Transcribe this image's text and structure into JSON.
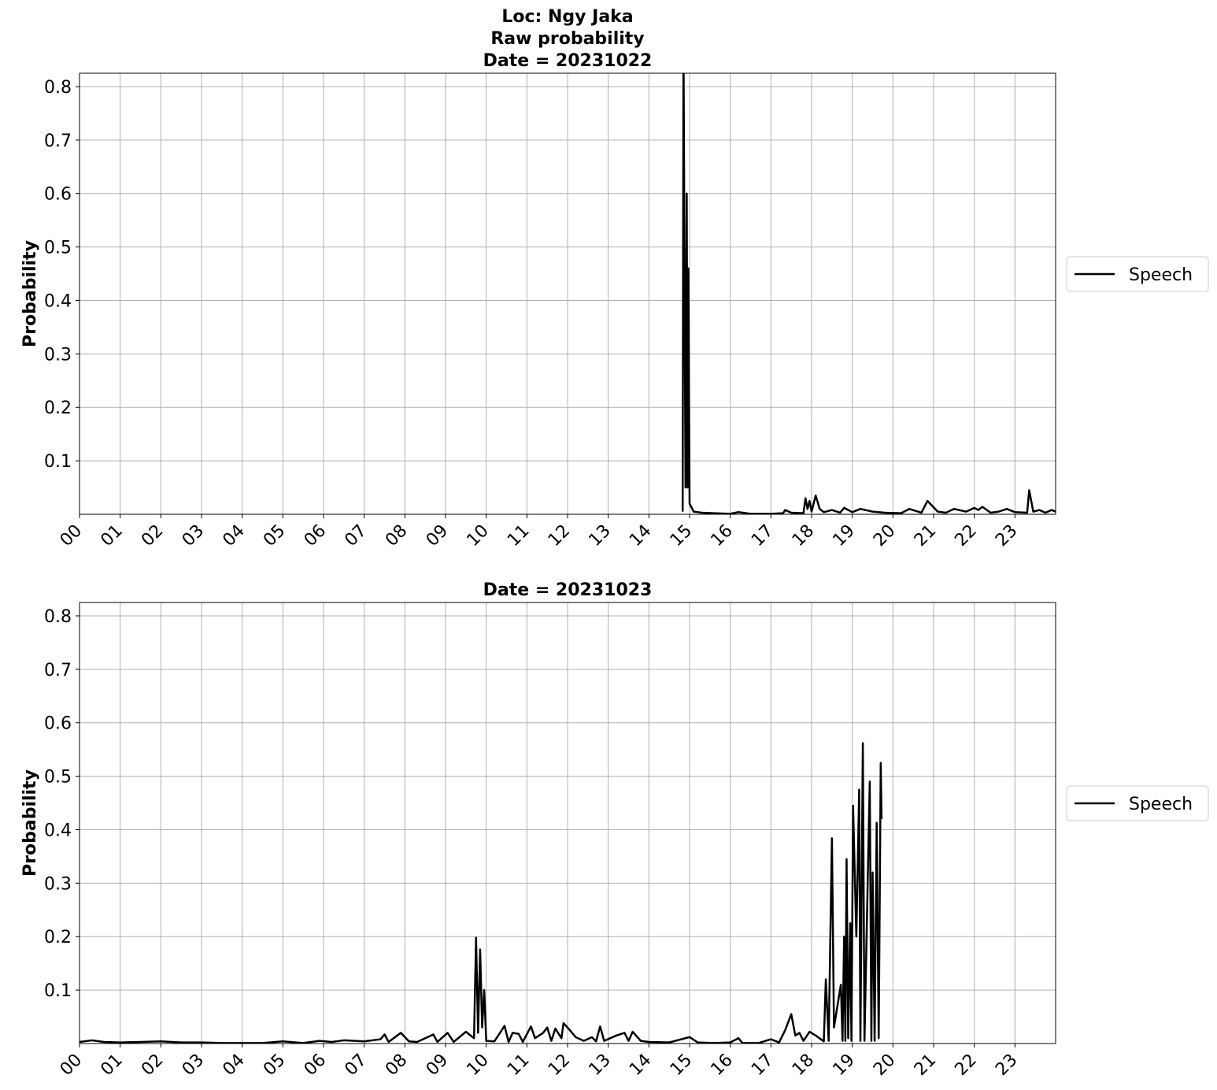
{
  "chart_data": [
    {
      "type": "line",
      "title": [
        "Loc: Ngy Jaka",
        "Raw probability",
        "Date = 20231022"
      ],
      "ylabel": "Probability",
      "x": [
        14.83,
        14.85,
        14.88,
        14.9,
        14.93,
        14.95,
        14.97,
        15.0,
        15.1,
        15.3,
        15.6,
        16.0,
        16.2,
        16.5,
        17.0,
        17.3,
        17.35,
        17.5,
        17.8,
        17.85,
        17.9,
        17.95,
        18.0,
        18.1,
        18.2,
        18.3,
        18.5,
        18.7,
        18.8,
        19.0,
        19.2,
        19.5,
        19.8,
        20.2,
        20.4,
        20.7,
        20.85,
        21.1,
        21.3,
        21.5,
        21.8,
        22.0,
        22.1,
        22.2,
        22.4,
        22.6,
        22.8,
        23.0,
        23.3,
        23.35,
        23.45,
        23.6,
        23.75,
        23.9,
        24.0
      ],
      "series": [
        {
          "name": "Speech",
          "color": "#000000",
          "values": [
            0.005,
            0.9,
            0.37,
            0.05,
            0.6,
            0.05,
            0.46,
            0.02,
            0.005,
            0.003,
            0.002,
            0.001,
            0.004,
            0.001,
            0.001,
            0.002,
            0.008,
            0.003,
            0.002,
            0.03,
            0.01,
            0.025,
            0.005,
            0.035,
            0.01,
            0.004,
            0.008,
            0.003,
            0.012,
            0.004,
            0.01,
            0.005,
            0.003,
            0.002,
            0.01,
            0.003,
            0.025,
            0.005,
            0.003,
            0.01,
            0.005,
            0.012,
            0.008,
            0.014,
            0.003,
            0.005,
            0.01,
            0.004,
            0.003,
            0.045,
            0.005,
            0.008,
            0.003,
            0.008,
            0.005
          ]
        }
      ],
      "xlim": [
        0,
        24
      ],
      "ylim": [
        0,
        0.825
      ],
      "xticks": [
        {
          "value": 0,
          "label": "00"
        },
        {
          "value": 1,
          "label": "01"
        },
        {
          "value": 2,
          "label": "02"
        },
        {
          "value": 3,
          "label": "03"
        },
        {
          "value": 4,
          "label": "04"
        },
        {
          "value": 5,
          "label": "05"
        },
        {
          "value": 6,
          "label": "06"
        },
        {
          "value": 7,
          "label": "07"
        },
        {
          "value": 8,
          "label": "08"
        },
        {
          "value": 9,
          "label": "09"
        },
        {
          "value": 10,
          "label": "10"
        },
        {
          "value": 11,
          "label": "11"
        },
        {
          "value": 12,
          "label": "12"
        },
        {
          "value": 13,
          "label": "13"
        },
        {
          "value": 14,
          "label": "14"
        },
        {
          "value": 15,
          "label": "15"
        },
        {
          "value": 16,
          "label": "16"
        },
        {
          "value": 17,
          "label": "17"
        },
        {
          "value": 18,
          "label": "18"
        },
        {
          "value": 19,
          "label": "19"
        },
        {
          "value": 20,
          "label": "20"
        },
        {
          "value": 21,
          "label": "21"
        },
        {
          "value": 22,
          "label": "22"
        },
        {
          "value": 23,
          "label": "23"
        }
      ],
      "yticks": [
        0.1,
        0.2,
        0.3,
        0.4,
        0.5,
        0.6,
        0.7,
        0.8
      ],
      "grid": true,
      "legend_loc": "right"
    },
    {
      "type": "line",
      "title": [
        "Date = 20231023"
      ],
      "ylabel": "Probability",
      "x": [
        0,
        0.3,
        0.6,
        1.0,
        1.5,
        2.0,
        2.5,
        3.0,
        3.5,
        4.0,
        4.5,
        5.0,
        5.5,
        5.9,
        6.2,
        6.5,
        7.0,
        7.4,
        7.5,
        7.6,
        7.9,
        8.1,
        8.3,
        8.7,
        8.8,
        9.05,
        9.2,
        9.5,
        9.7,
        9.75,
        9.8,
        9.85,
        9.9,
        9.95,
        10.0,
        10.2,
        10.45,
        10.55,
        10.65,
        10.8,
        10.9,
        11.1,
        11.2,
        11.4,
        11.5,
        11.6,
        11.7,
        11.85,
        11.9,
        12.0,
        12.2,
        12.4,
        12.6,
        12.7,
        12.8,
        12.9,
        13.2,
        13.4,
        13.5,
        13.6,
        13.8,
        14.0,
        14.5,
        15.0,
        15.2,
        15.6,
        16.0,
        16.2,
        16.3,
        16.7,
        17.0,
        17.2,
        17.35,
        17.5,
        17.6,
        17.7,
        17.8,
        17.95,
        18.1,
        18.3,
        18.35,
        18.42,
        18.5,
        18.55,
        18.72,
        18.76,
        18.8,
        18.83,
        18.86,
        18.9,
        18.95,
        18.98,
        19.02,
        19.1,
        19.17,
        19.2,
        19.26,
        19.3,
        19.43,
        19.47,
        19.5,
        19.55,
        19.6,
        19.65,
        19.7,
        19.72
      ],
      "series": [
        {
          "name": "Speech",
          "color": "#000000",
          "values": [
            0.003,
            0.006,
            0.003,
            0.002,
            0.003,
            0.004,
            0.002,
            0.002,
            0.001,
            0.001,
            0.001,
            0.004,
            0.001,
            0.005,
            0.003,
            0.006,
            0.004,
            0.008,
            0.017,
            0.003,
            0.02,
            0.004,
            0.003,
            0.017,
            0.003,
            0.02,
            0.003,
            0.022,
            0.01,
            0.198,
            0.02,
            0.176,
            0.03,
            0.1,
            0.005,
            0.004,
            0.033,
            0.003,
            0.02,
            0.018,
            0.003,
            0.032,
            0.01,
            0.02,
            0.03,
            0.005,
            0.028,
            0.01,
            0.038,
            0.03,
            0.012,
            0.005,
            0.012,
            0.004,
            0.032,
            0.005,
            0.015,
            0.02,
            0.005,
            0.022,
            0.005,
            0.003,
            0.002,
            0.012,
            0.002,
            0.001,
            0.002,
            0.01,
            0.001,
            0.001,
            0.008,
            0.002,
            0.025,
            0.055,
            0.015,
            0.02,
            0.005,
            0.022,
            0.015,
            0.004,
            0.12,
            0.005,
            0.384,
            0.03,
            0.11,
            0.005,
            0.2,
            0.005,
            0.345,
            0.01,
            0.225,
            0.005,
            0.445,
            0.2,
            0.475,
            0.005,
            0.562,
            0.005,
            0.49,
            0.005,
            0.32,
            0.005,
            0.413,
            0.01,
            0.525,
            0.42
          ]
        }
      ],
      "xlim": [
        0,
        24
      ],
      "ylim": [
        0,
        0.825
      ],
      "xticks": [
        {
          "value": 0,
          "label": "00"
        },
        {
          "value": 1,
          "label": "01"
        },
        {
          "value": 2,
          "label": "02"
        },
        {
          "value": 3,
          "label": "03"
        },
        {
          "value": 4,
          "label": "04"
        },
        {
          "value": 5,
          "label": "05"
        },
        {
          "value": 6,
          "label": "06"
        },
        {
          "value": 7,
          "label": "07"
        },
        {
          "value": 8,
          "label": "08"
        },
        {
          "value": 9,
          "label": "09"
        },
        {
          "value": 10,
          "label": "10"
        },
        {
          "value": 11,
          "label": "11"
        },
        {
          "value": 12,
          "label": "12"
        },
        {
          "value": 13,
          "label": "13"
        },
        {
          "value": 14,
          "label": "14"
        },
        {
          "value": 15,
          "label": "15"
        },
        {
          "value": 16,
          "label": "16"
        },
        {
          "value": 17,
          "label": "17"
        },
        {
          "value": 18,
          "label": "18"
        },
        {
          "value": 19,
          "label": "19"
        },
        {
          "value": 20,
          "label": "20"
        },
        {
          "value": 21,
          "label": "21"
        },
        {
          "value": 22,
          "label": "22"
        },
        {
          "value": 23,
          "label": "23"
        }
      ],
      "yticks": [
        0.1,
        0.2,
        0.3,
        0.4,
        0.5,
        0.6,
        0.7,
        0.8
      ],
      "grid": true,
      "legend_loc": "right"
    }
  ]
}
